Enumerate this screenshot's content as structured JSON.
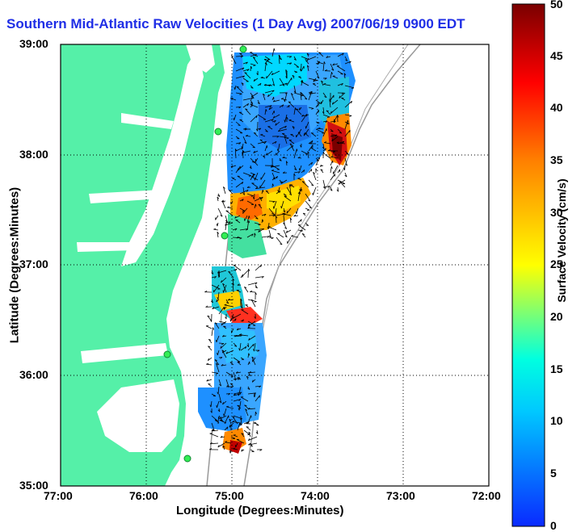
{
  "title": "Southern Mid-Atlantic Raw Velocities (1 Day Avg) 2007/06/19 0900 EDT",
  "map": {
    "xlabel": "Longitude (Degrees:Minutes)",
    "ylabel": "Latitude (Degrees:Minutes)",
    "x_ticks": [
      "77:00",
      "76:00",
      "75:00",
      "74:00",
      "73:00",
      "72:00"
    ],
    "y_ticks": [
      "39:00",
      "38:00",
      "37:00",
      "36:00",
      "35:00"
    ],
    "land_color": "#55f0a8",
    "arrow_color": "#000000",
    "grid": "dotted",
    "stations": 5
  },
  "colorbar": {
    "label": "Surface Velocity (cm/s)",
    "ticks": [
      "0",
      "5",
      "10",
      "15",
      "20",
      "25",
      "30",
      "35",
      "40",
      "45",
      "50"
    ],
    "min": 0,
    "max": 50,
    "colors": [
      "#0a2aff",
      "#00c8ff",
      "#00ffe0",
      "#ffff00",
      "#ff8000",
      "#ff0000",
      "#7a0000"
    ]
  }
}
